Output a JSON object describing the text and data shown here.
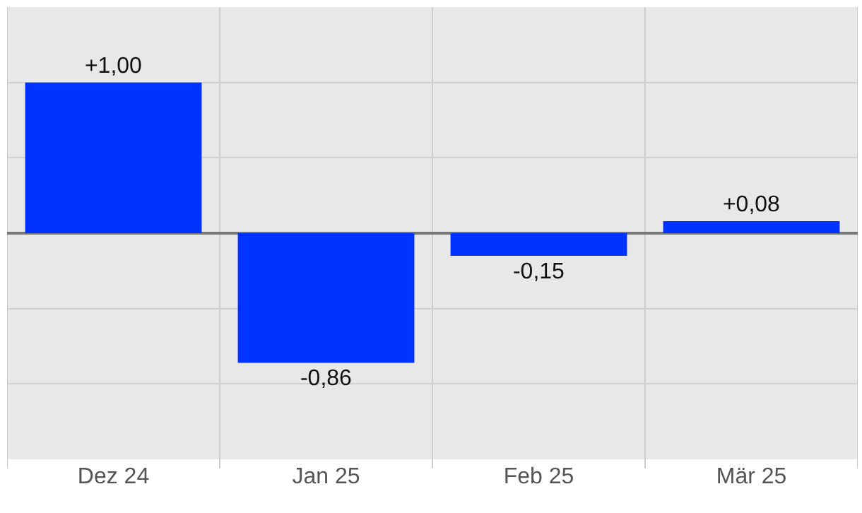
{
  "chart_data": {
    "type": "bar",
    "categories": [
      "Dez 24",
      "Jan 25",
      "Feb 25",
      "Mär 25"
    ],
    "values": [
      1.0,
      -0.86,
      -0.15,
      0.08
    ],
    "value_labels": [
      "+1,00",
      "-0,86",
      "-0,15",
      "+0,08"
    ],
    "color": "#0033ff",
    "ylim": [
      -1.5,
      1.5
    ],
    "yticks": [
      {
        "value": -1.5,
        "label": null
      },
      {
        "value": -1.0,
        "label": null
      },
      {
        "value": -0.5,
        "label": null
      },
      {
        "value": 0,
        "label": null
      },
      {
        "value": 0.5,
        "label": null
      },
      {
        "value": 1.0,
        "label": null
      },
      {
        "value": 1.5,
        "label": null
      }
    ],
    "tick_labels": "x",
    "grid": true,
    "legend": false
  }
}
